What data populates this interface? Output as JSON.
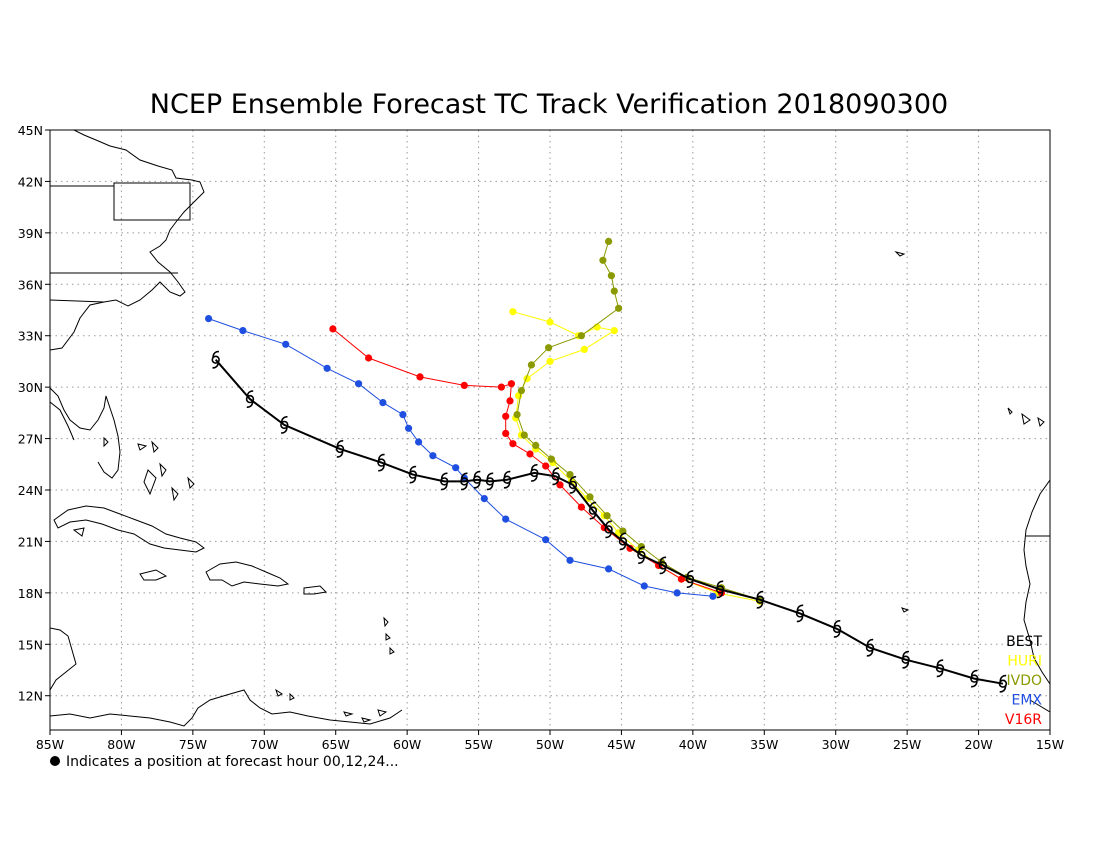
{
  "title": "NCEP Ensemble Forecast TC Track Verification 2018090300",
  "note": "Indicates a position at forecast hour 00,12,24...",
  "axes": {
    "lon_range": [
      -85,
      -15
    ],
    "lat_range": [
      10,
      45
    ],
    "lon_ticks": [
      {
        "value": -85,
        "label": "85W"
      },
      {
        "value": -80,
        "label": "80W"
      },
      {
        "value": -75,
        "label": "75W"
      },
      {
        "value": -70,
        "label": "70W"
      },
      {
        "value": -65,
        "label": "65W"
      },
      {
        "value": -60,
        "label": "60W"
      },
      {
        "value": -55,
        "label": "55W"
      },
      {
        "value": -50,
        "label": "50W"
      },
      {
        "value": -45,
        "label": "45W"
      },
      {
        "value": -40,
        "label": "40W"
      },
      {
        "value": -35,
        "label": "35W"
      },
      {
        "value": -30,
        "label": "30W"
      },
      {
        "value": -25,
        "label": "25W"
      },
      {
        "value": -20,
        "label": "20W"
      },
      {
        "value": -15,
        "label": "15W"
      }
    ],
    "lat_ticks": [
      {
        "value": 12,
        "label": "12N"
      },
      {
        "value": 15,
        "label": "15N"
      },
      {
        "value": 18,
        "label": "18N"
      },
      {
        "value": 21,
        "label": "21N"
      },
      {
        "value": 24,
        "label": "24N"
      },
      {
        "value": 27,
        "label": "27N"
      },
      {
        "value": 30,
        "label": "30N"
      },
      {
        "value": 33,
        "label": "33N"
      },
      {
        "value": 36,
        "label": "36N"
      },
      {
        "value": 39,
        "label": "39N"
      },
      {
        "value": 42,
        "label": "42N"
      },
      {
        "value": 45,
        "label": "45N"
      }
    ],
    "grid": true
  },
  "legend": [
    {
      "label": "BEST",
      "color": "#000000"
    },
    {
      "label": "HURI",
      "color": "#ffff00"
    },
    {
      "label": "IVDO",
      "color": "#8a9a00"
    },
    {
      "label": "EMX",
      "color": "#1f4fe0"
    },
    {
      "label": "V16R",
      "color": "#ff0000"
    }
  ],
  "tracks": [
    {
      "name": "BEST",
      "color": "#000000",
      "marker": "hurricane",
      "points": [
        [
          -18.3,
          12.7
        ],
        [
          -20.3,
          13.0
        ],
        [
          -22.7,
          13.6
        ],
        [
          -25.1,
          14.1
        ],
        [
          -27.6,
          14.8
        ],
        [
          -29.9,
          15.9
        ],
        [
          -32.5,
          16.8
        ],
        [
          -35.3,
          17.6
        ],
        [
          -38.1,
          18.2
        ],
        [
          -40.2,
          18.8
        ],
        [
          -42.1,
          19.6
        ],
        [
          -43.6,
          20.2
        ],
        [
          -44.9,
          21.0
        ],
        [
          -45.9,
          21.7
        ],
        [
          -47.0,
          22.8
        ],
        [
          -48.4,
          24.3
        ],
        [
          -49.6,
          24.8
        ],
        [
          -51.1,
          25.0
        ],
        [
          -53.0,
          24.6
        ],
        [
          -54.2,
          24.5
        ],
        [
          -55.1,
          24.6
        ],
        [
          -56.0,
          24.5
        ],
        [
          -57.4,
          24.5
        ],
        [
          -59.6,
          24.9
        ],
        [
          -61.8,
          25.6
        ],
        [
          -64.7,
          26.4
        ],
        [
          -68.6,
          27.8
        ],
        [
          -71.0,
          29.3
        ],
        [
          -73.4,
          31.6
        ]
      ]
    },
    {
      "name": "HURI",
      "color": "#ffff00",
      "marker": "dot",
      "points": [
        [
          -35.3,
          17.5
        ],
        [
          -38.3,
          18.0
        ],
        [
          -40.8,
          18.8
        ],
        [
          -42.4,
          19.6
        ],
        [
          -43.8,
          20.5
        ],
        [
          -45.2,
          21.5
        ],
        [
          -46.2,
          22.5
        ],
        [
          -47.4,
          23.5
        ],
        [
          -48.5,
          24.5
        ],
        [
          -49.8,
          25.6
        ],
        [
          -51.0,
          26.4
        ],
        [
          -52.0,
          27.2
        ],
        [
          -52.4,
          28.2
        ],
        [
          -52.2,
          29.5
        ],
        [
          -51.6,
          30.5
        ],
        [
          -50.0,
          31.5
        ],
        [
          -47.6,
          32.2
        ],
        [
          -45.5,
          33.3
        ],
        [
          -46.7,
          33.5
        ],
        [
          -48.0,
          33.0
        ],
        [
          -50.0,
          33.8
        ],
        [
          -52.6,
          34.4
        ]
      ]
    },
    {
      "name": "IVDO",
      "color": "#8a9a00",
      "marker": "dot",
      "points": [
        [
          -35.3,
          17.6
        ],
        [
          -38.0,
          18.3
        ],
        [
          -40.4,
          18.9
        ],
        [
          -42.2,
          19.8
        ],
        [
          -43.6,
          20.7
        ],
        [
          -44.9,
          21.6
        ],
        [
          -46.0,
          22.5
        ],
        [
          -47.2,
          23.6
        ],
        [
          -48.6,
          24.9
        ],
        [
          -49.9,
          25.8
        ],
        [
          -51.0,
          26.6
        ],
        [
          -51.8,
          27.2
        ],
        [
          -52.3,
          28.4
        ],
        [
          -52.0,
          29.8
        ],
        [
          -51.3,
          31.3
        ],
        [
          -50.1,
          32.3
        ],
        [
          -47.8,
          33.0
        ],
        [
          -45.2,
          34.6
        ],
        [
          -45.5,
          35.6
        ],
        [
          -45.7,
          36.5
        ],
        [
          -46.3,
          37.4
        ],
        [
          -45.9,
          38.5
        ]
      ]
    },
    {
      "name": "EMX",
      "color": "#1f4fe0",
      "marker": "dot",
      "points": [
        [
          -38.6,
          17.8
        ],
        [
          -41.1,
          18.0
        ],
        [
          -43.4,
          18.4
        ],
        [
          -45.9,
          19.4
        ],
        [
          -48.6,
          19.9
        ],
        [
          -50.3,
          21.1
        ],
        [
          -53.1,
          22.3
        ],
        [
          -54.6,
          23.5
        ],
        [
          -56.0,
          24.7
        ],
        [
          -56.6,
          25.3
        ],
        [
          -58.2,
          26.0
        ],
        [
          -59.2,
          26.8
        ],
        [
          -59.9,
          27.6
        ],
        [
          -60.3,
          28.4
        ],
        [
          -61.7,
          29.1
        ],
        [
          -63.4,
          30.2
        ],
        [
          -65.6,
          31.1
        ],
        [
          -68.5,
          32.5
        ],
        [
          -71.5,
          33.3
        ],
        [
          -73.9,
          34.0
        ]
      ]
    },
    {
      "name": "V16R",
      "color": "#ff0000",
      "marker": "dot",
      "points": [
        [
          -38.0,
          18.0
        ],
        [
          -40.8,
          18.8
        ],
        [
          -42.4,
          19.6
        ],
        [
          -44.4,
          20.6
        ],
        [
          -46.2,
          21.8
        ],
        [
          -47.8,
          23.0
        ],
        [
          -49.3,
          24.3
        ],
        [
          -50.3,
          25.4
        ],
        [
          -51.4,
          26.1
        ],
        [
          -52.6,
          26.7
        ],
        [
          -53.1,
          27.3
        ],
        [
          -53.1,
          28.3
        ],
        [
          -52.8,
          29.2
        ],
        [
          -52.7,
          30.2
        ],
        [
          -53.4,
          30.0
        ],
        [
          -56.0,
          30.1
        ],
        [
          -59.1,
          30.6
        ],
        [
          -62.7,
          31.7
        ],
        [
          -65.2,
          33.4
        ]
      ]
    }
  ]
}
